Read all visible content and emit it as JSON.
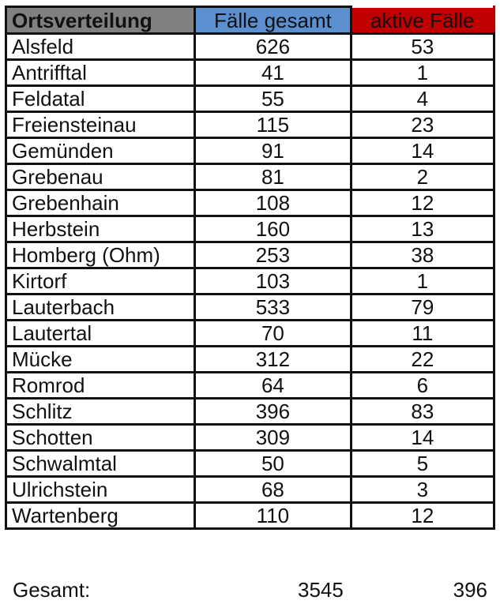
{
  "header": {
    "place": "Ortsverteilung",
    "total_cases": "Fälle gesamt",
    "active_cases": "aktive Fälle"
  },
  "header_colors": {
    "place": "#808080",
    "total_cases": "#5b8fd0",
    "active_cases": "#c00000"
  },
  "rows": [
    {
      "place": "Alsfeld",
      "total": "626",
      "active": "53"
    },
    {
      "place": "Antrifftal",
      "total": "41",
      "active": "1"
    },
    {
      "place": "Feldatal",
      "total": "55",
      "active": "4"
    },
    {
      "place": "Freiensteinau",
      "total": "115",
      "active": "23"
    },
    {
      "place": "Gemünden",
      "total": "91",
      "active": "14"
    },
    {
      "place": "Grebenau",
      "total": "81",
      "active": "2"
    },
    {
      "place": "Grebenhain",
      "total": "108",
      "active": "12"
    },
    {
      "place": "Herbstein",
      "total": "160",
      "active": "13"
    },
    {
      "place": "Homberg (Ohm)",
      "total": "253",
      "active": "38"
    },
    {
      "place": "Kirtorf",
      "total": "103",
      "active": "1"
    },
    {
      "place": "Lauterbach",
      "total": "533",
      "active": "79"
    },
    {
      "place": "Lautertal",
      "total": "70",
      "active": "11"
    },
    {
      "place": "Mücke",
      "total": "312",
      "active": "22"
    },
    {
      "place": "Romrod",
      "total": "64",
      "active": "6"
    },
    {
      "place": "Schlitz",
      "total": "396",
      "active": "83"
    },
    {
      "place": "Schotten",
      "total": "309",
      "active": "14"
    },
    {
      "place": "Schwalmtal",
      "total": "50",
      "active": "5"
    },
    {
      "place": "Ulrichstein",
      "total": "68",
      "active": "3"
    },
    {
      "place": "Wartenberg",
      "total": "110",
      "active": "12"
    }
  ],
  "footer": {
    "label": "Gesamt:",
    "total": "3545",
    "active": "396"
  }
}
